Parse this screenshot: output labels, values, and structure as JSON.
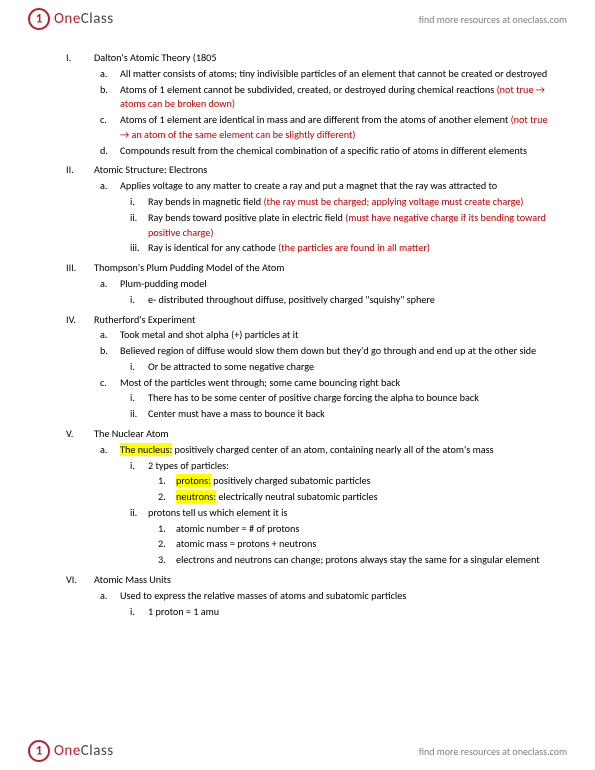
{
  "brand": {
    "one": "One",
    "class": "Class",
    "tagline": "find more resources at oneclass.com"
  },
  "colors": {
    "red": "#c00000",
    "highlight": "#ffff00",
    "brand_red": "#bc1e2d",
    "grey": "#808080"
  },
  "font": {
    "family": "Calibri",
    "body_size_pt": 10.2,
    "line_height": 1.45
  },
  "doc": {
    "I": {
      "title": "Dalton's Atomic Theory (1805",
      "a": "All matter consists of atoms; tiny indivisible particles of an element that cannot be created or destroyed",
      "b": {
        "t": "Atoms of 1 element cannot be subdivided, created, or destroyed during chemical reactions ",
        "r": "(not true → atoms can be broken down)"
      },
      "c": {
        "t": "Atoms of 1 element are identical in mass and are different from the atoms of another element ",
        "r": "(not true → an atom of the same element can be slightly different)"
      },
      "d": "Compounds result from the chemical combination of a specific ratio of atoms in different elements"
    },
    "II": {
      "title": "Atomic Structure: Electrons",
      "a": {
        "t": "Applies voltage to any matter to create a ray and put a magnet that the ray was attracted to",
        "i": {
          "t": "Ray bends in magnetic field ",
          "r": "(the ray must be charged; applying voltage must create charge)"
        },
        "ii": {
          "t": "Ray bends toward positive plate in electric field ",
          "r": "(must have negative charge if its bending toward positive charge)"
        },
        "iii": {
          "t": "Ray is identical for any cathode ",
          "r": "(the particles are found in all matter)"
        }
      }
    },
    "III": {
      "title": "Thompson's Plum Pudding Model of the Atom",
      "a": {
        "t": "Plum-pudding model",
        "i": "e- distributed throughout diffuse, positively charged \"squishy\" sphere"
      }
    },
    "IV": {
      "title": "Rutherford's Experiment",
      "a": "Took metal and shot alpha (+) particles at it",
      "b": {
        "t": "Believed region of diffuse would slow them down but they'd go through and end up at the other side",
        "i": "Or be attracted to some negative charge"
      },
      "c": {
        "t": "Most of the particles went through; some came bouncing right back",
        "i": "There has to be some center of positive charge forcing the alpha to bounce back",
        "ii": "Center must have a mass to bounce it back"
      }
    },
    "V": {
      "title": "The Nuclear Atom",
      "a": {
        "h": "The nucleus:",
        "t": " positively charged center of an atom, containing nearly all of the atom's mass",
        "i": {
          "t": "2 types of particles:",
          "1": {
            "h": "protons:",
            "t": " positively charged subatomic particles"
          },
          "2": {
            "h": "neutrons:",
            "t": " electrically neutral subatomic particles"
          }
        },
        "ii": {
          "t": "protons tell us which element it is",
          "1": "atomic number = # of protons",
          "2": "atomic mass = protons + neutrons",
          "3": "electrons and neutrons can change; protons always stay the same for a singular element"
        }
      }
    },
    "VI": {
      "title": "Atomic Mass Units",
      "a": {
        "t": "Used to express the relative masses of atoms and subatomic particles",
        "i": "1 proton = 1 amu"
      }
    }
  }
}
